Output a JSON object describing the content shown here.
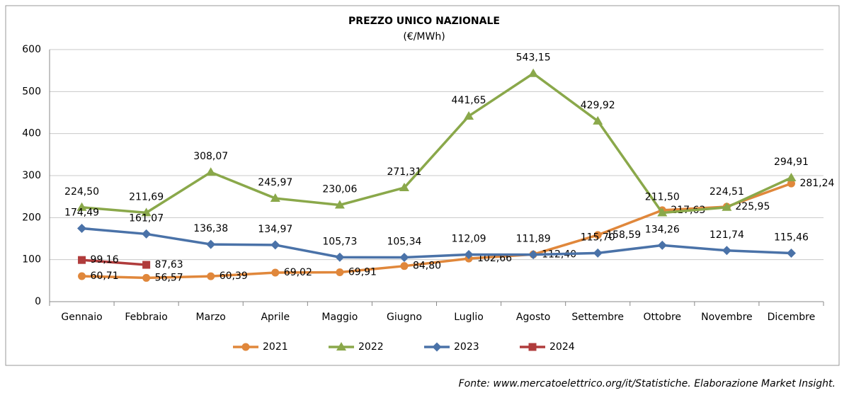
{
  "chart_data": {
    "type": "line",
    "title": "PREZZO UNICO NAZIONALE",
    "subtitle": "(€/MWh)",
    "categories": [
      "Gennaio",
      "Febbraio",
      "Marzo",
      "Aprile",
      "Maggio",
      "Giugno",
      "Luglio",
      "Agosto",
      "Settembre",
      "Ottobre",
      "Novembre",
      "Dicembre"
    ],
    "series": [
      {
        "name": "2021",
        "color": "#e0873b",
        "marker": "circle",
        "values": [
          60.71,
          56.57,
          60.39,
          69.02,
          69.91,
          84.8,
          102.66,
          112.4,
          158.59,
          217.63,
          225.95,
          281.24
        ],
        "value_labels": [
          "60,71",
          "56,57",
          "60,39",
          "69,02",
          "69,91",
          "84,80",
          "102,66",
          "112,40",
          "158,59",
          "217,63",
          "225,95",
          "281,24"
        ]
      },
      {
        "name": "2022",
        "color": "#8aa84a",
        "marker": "triangle",
        "values": [
          224.5,
          211.69,
          308.07,
          245.97,
          230.06,
          271.31,
          441.65,
          543.15,
          429.92,
          211.5,
          224.51,
          294.91
        ],
        "value_labels": [
          "224,50",
          "211,69",
          "308,07",
          "245,97",
          "230,06",
          "271,31",
          "441,65",
          "543,15",
          "429,92",
          "211,50",
          "224,51",
          "294,91"
        ]
      },
      {
        "name": "2023",
        "color": "#4a72a8",
        "marker": "diamond",
        "values": [
          174.49,
          161.07,
          136.38,
          134.97,
          105.73,
          105.34,
          112.09,
          111.89,
          115.7,
          134.26,
          121.74,
          115.46
        ],
        "value_labels": [
          "174,49",
          "161,07",
          "136,38",
          "134,97",
          "105,73",
          "105,34",
          "112,09",
          "111,89",
          "115,70",
          "134,26",
          "121,74",
          "115,46"
        ]
      },
      {
        "name": "2024",
        "color": "#b03c3c",
        "marker": "square",
        "values": [
          99.16,
          87.63,
          null,
          null,
          null,
          null,
          null,
          null,
          null,
          null,
          null,
          null
        ],
        "value_labels": [
          "99,16",
          "87,63",
          null,
          null,
          null,
          null,
          null,
          null,
          null,
          null,
          null,
          null
        ]
      }
    ],
    "ylim": [
      0,
      600
    ],
    "yticks": [
      0,
      100,
      200,
      300,
      400,
      500,
      600
    ],
    "grid": true,
    "legend": "bottom",
    "source": "Fonte: www.mercatoelettrico.org/it/Statistiche. Elaborazione Market Insight."
  }
}
